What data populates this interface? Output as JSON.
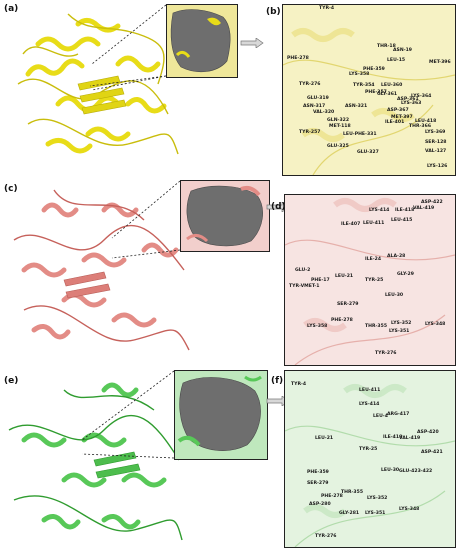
{
  "panels": {
    "a": "(a)",
    "b": "(b)",
    "c": "(c)",
    "d": "(d)",
    "e": "(e)",
    "f": "(f)"
  },
  "colors": {
    "row1_protein": "#e8dc18",
    "row1_bg": "#f6f2c4",
    "row2_protein": "#e38c86",
    "row2_bg": "#f7e4e2",
    "row3_protein": "#58c858",
    "row3_bg": "#e4f3e0",
    "surface": "#6e6e6e"
  },
  "residues_b": [
    "TYR-4",
    "THR-18",
    "ASN-19",
    "LEU-15",
    "MET-396",
    "PHE-278",
    "PHE-359",
    "LYS-358",
    "TYR-354",
    "LEU-360",
    "TYR-276",
    "PHE-357",
    "GLY-361",
    "ASP-361",
    "GLU-319",
    "ASN-321",
    "LYS-364",
    "LYS-363",
    "ASN-317",
    "VAL-320",
    "ASP-367",
    "MET-397",
    "LEU-418",
    "ILE-401",
    "THR-366",
    "GLN-322",
    "MET-118",
    "LYS-369",
    "TYR-257",
    "LEU-PHE-331",
    "SER-128",
    "GLU-325",
    "GLU-327",
    "VAL-127",
    "LYS-126"
  ],
  "residues_d": [
    "ASP-422",
    "VAL-419",
    "LYS-414",
    "ILE-418",
    "LEU-415",
    "LEU-411",
    "ILE-407",
    "ALA-28",
    "ILE-24",
    "GLU-2",
    "LEU-21",
    "GLY-29",
    "TYR-25",
    "PHE-17",
    "TYR-VMET-1",
    "LEU-30",
    "SER-279",
    "PHE-278",
    "LYS-358",
    "THR-355",
    "LYS-352",
    "LYS-348",
    "LYS-351",
    "TYR-276"
  ],
  "residues_f": [
    "TYR-4",
    "LEU-411",
    "LYS-414",
    "LEU-4",
    "ARG-417",
    "ASP-420",
    "LEU-21",
    "ILE-418",
    "VAL-419",
    "TYR-25",
    "ASP-421",
    "PHE-359",
    "LEU-30",
    "GLU-423-422",
    "SER-279",
    "THR-355",
    "PHE-278",
    "LYS-352",
    "ASP-280",
    "LYS-348",
    "GLY-281",
    "LYS-351",
    "TYR-276"
  ]
}
